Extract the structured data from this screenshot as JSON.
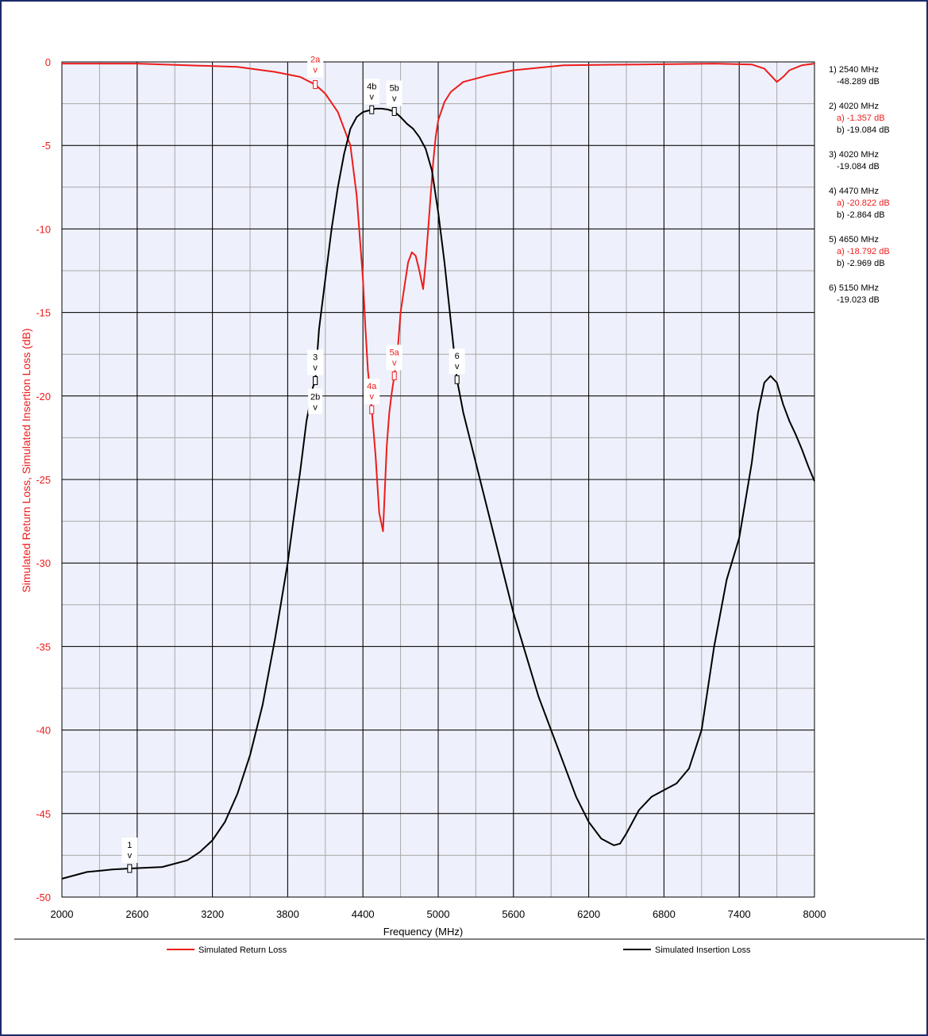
{
  "chart_data": {
    "type": "line",
    "xlabel": "Frequency (MHz)",
    "ylabel": "Simulated Return Loss, Simulated Insertion Loss (dB)",
    "xlim": [
      2000,
      8000
    ],
    "ylim": [
      -50,
      0
    ],
    "x_ticks": [
      "2000",
      "2600",
      "3200",
      "3800",
      "4400",
      "5000",
      "5600",
      "6200",
      "6800",
      "7400",
      "8000"
    ],
    "x_tick_values": [
      2000,
      2600,
      3200,
      3800,
      4400,
      5000,
      5600,
      6200,
      6800,
      7400,
      8000
    ],
    "y_ticks": [
      "0",
      "-5",
      "-10",
      "-15",
      "-20",
      "-25",
      "-30",
      "-35",
      "-40",
      "-45",
      "-50"
    ],
    "y_tick_values": [
      0,
      -5,
      -10,
      -15,
      -20,
      -25,
      -30,
      -35,
      -40,
      -45,
      -50
    ],
    "x_minor_step": 300,
    "y_minor_step": 2.5,
    "grid": true,
    "legend_position": "bottom",
    "series": [
      {
        "name": "Simulated Return Loss",
        "color": "#ee1c1c",
        "x": [
          2000,
          2600,
          3000,
          3400,
          3700,
          3900,
          4020,
          4100,
          4200,
          4300,
          4350,
          4400,
          4420,
          4440,
          4460,
          4470,
          4500,
          4530,
          4560,
          4590,
          4610,
          4630,
          4650,
          4680,
          4700,
          4730,
          4760,
          4790,
          4820,
          4850,
          4880,
          4900,
          4920,
          4940,
          4960,
          4980,
          5000,
          5050,
          5100,
          5200,
          5400,
          5600,
          6000,
          6600,
          7200,
          7500,
          7600,
          7650,
          7700,
          7750,
          7800,
          7900,
          8000
        ],
        "y": [
          -0.1,
          -0.1,
          -0.2,
          -0.3,
          -0.6,
          -0.9,
          -1.357,
          -1.9,
          -3,
          -5,
          -8,
          -13,
          -16,
          -18.5,
          -20,
          -20.822,
          -23.5,
          -27,
          -28.1,
          -23,
          -21,
          -19.8,
          -18.792,
          -17,
          -15,
          -13.5,
          -12,
          -11.4,
          -11.6,
          -12.5,
          -13.6,
          -12,
          -10,
          -8,
          -6,
          -4.5,
          -3.5,
          -2.4,
          -1.8,
          -1.2,
          -0.8,
          -0.5,
          -0.2,
          -0.15,
          -0.1,
          -0.15,
          -0.4,
          -0.8,
          -1.2,
          -0.9,
          -0.5,
          -0.2,
          -0.1
        ]
      },
      {
        "name": "Simulated Insertion Loss",
        "color": "#000000",
        "x": [
          2000,
          2200,
          2400,
          2540,
          2800,
          3000,
          3100,
          3200,
          3300,
          3400,
          3500,
          3600,
          3700,
          3800,
          3850,
          3900,
          3950,
          4000,
          4020,
          4050,
          4100,
          4150,
          4200,
          4250,
          4300,
          4350,
          4400,
          4450,
          4470,
          4500,
          4550,
          4600,
          4650,
          4700,
          4750,
          4800,
          4850,
          4900,
          4950,
          5000,
          5050,
          5100,
          5150,
          5200,
          5300,
          5400,
          5500,
          5600,
          5700,
          5800,
          5900,
          6000,
          6100,
          6200,
          6300,
          6400,
          6450,
          6500,
          6600,
          6700,
          6800,
          6900,
          7000,
          7100,
          7200,
          7300,
          7400,
          7500,
          7550,
          7600,
          7650,
          7700,
          7750,
          7800,
          7850,
          7900,
          7950,
          8000
        ],
        "y": [
          -48.9,
          -48.5,
          -48.35,
          -48.289,
          -48.2,
          -47.8,
          -47.3,
          -46.6,
          -45.5,
          -43.8,
          -41.5,
          -38.5,
          -34.5,
          -30,
          -27.2,
          -24.5,
          -21.5,
          -19.5,
          -19.084,
          -16,
          -13,
          -10,
          -7.5,
          -5.5,
          -4,
          -3.3,
          -3,
          -2.9,
          -2.864,
          -2.8,
          -2.8,
          -2.85,
          -2.969,
          -3.3,
          -3.7,
          -4,
          -4.5,
          -5.2,
          -6.5,
          -9,
          -12,
          -15.5,
          -19.023,
          -21,
          -24,
          -27,
          -30,
          -33,
          -35.5,
          -38,
          -40,
          -42,
          -44,
          -45.5,
          -46.5,
          -46.9,
          -46.8,
          -46.2,
          -44.8,
          -44,
          -43.6,
          -43.2,
          -42.3,
          -40,
          -35,
          -31,
          -28.5,
          -24,
          -21,
          -19.2,
          -18.8,
          -19.2,
          -20.5,
          -21.5,
          -22.3,
          -23.2,
          -24.2,
          -25.1
        ]
      }
    ],
    "markers": [
      {
        "label": "1",
        "series": 1,
        "x": 2540,
        "y": -48.289
      },
      {
        "label": "2a",
        "series": 0,
        "x": 4020,
        "y": -1.357,
        "label_dy": -38,
        "dx": 0
      },
      {
        "label": "2b",
        "series": 1,
        "x": 4020,
        "y": -19.084,
        "label_below": true
      },
      {
        "label": "3",
        "series": 1,
        "x": 4020,
        "y": -19.084
      },
      {
        "label": "4a",
        "series": 0,
        "x": 4470,
        "y": -20.822
      },
      {
        "label": "4b",
        "series": 1,
        "x": 4470,
        "y": -2.864
      },
      {
        "label": "5a",
        "series": 0,
        "x": 4650,
        "y": -18.792
      },
      {
        "label": "5b",
        "series": 1,
        "x": 4650,
        "y": -2.969
      },
      {
        "label": "6",
        "series": 1,
        "x": 5150,
        "y": -19.023
      }
    ],
    "marker_table": [
      {
        "lines": [
          {
            "text": "1) 2540 MHz",
            "color": "#000000"
          },
          {
            "text": "-48.289 dB",
            "color": "#000000",
            "indent": true
          }
        ]
      },
      {
        "lines": [
          {
            "text": "2) 4020 MHz",
            "color": "#000000"
          },
          {
            "text": "a) -1.357 dB",
            "color": "#ee1c1c",
            "indent": true
          },
          {
            "text": "b) -19.084 dB",
            "color": "#000000",
            "indent": true
          }
        ]
      },
      {
        "lines": [
          {
            "text": "3) 4020 MHz",
            "color": "#000000"
          },
          {
            "text": "-19.084 dB",
            "color": "#000000",
            "indent": true
          }
        ]
      },
      {
        "lines": [
          {
            "text": "4) 4470 MHz",
            "color": "#000000"
          },
          {
            "text": "a) -20.822 dB",
            "color": "#ee1c1c",
            "indent": true
          },
          {
            "text": "b) -2.864 dB",
            "color": "#000000",
            "indent": true
          }
        ]
      },
      {
        "lines": [
          {
            "text": "5) 4650 MHz",
            "color": "#000000"
          },
          {
            "text": "a) -18.792 dB",
            "color": "#ee1c1c",
            "indent": true
          },
          {
            "text": "b) -2.969 dB",
            "color": "#000000",
            "indent": true
          }
        ]
      },
      {
        "lines": [
          {
            "text": "6) 5150 MHz",
            "color": "#000000"
          },
          {
            "text": "-19.023 dB",
            "color": "#000000",
            "indent": true
          }
        ]
      }
    ],
    "colors": {
      "plot_background": "#eef1fb",
      "axis_label": "#ee1c1c",
      "grid_major": "#000000",
      "grid_minor": "#a9a9a9",
      "frame_border": "#1c2a6b"
    }
  }
}
